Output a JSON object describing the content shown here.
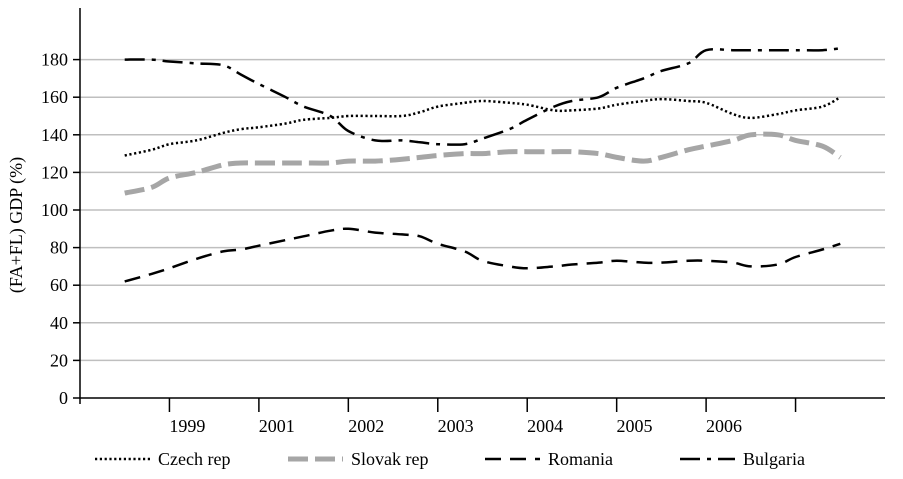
{
  "chart_data": {
    "type": "line",
    "title": "",
    "xlabel": "",
    "ylabel": "(FA+FL) GDP (%)",
    "ylim": [
      0,
      200
    ],
    "yticks": [
      0,
      20,
      40,
      60,
      80,
      100,
      120,
      140,
      160,
      180
    ],
    "categories": [
      "1999",
      "2001",
      "2002",
      "2003",
      "2004",
      "2005",
      "2006"
    ],
    "grid": "horizontal",
    "legend_position": "bottom",
    "series": [
      {
        "name": "Czech rep",
        "style": "dotted",
        "color": "#000000",
        "x": [
          0.5,
          0.8,
          1.0,
          1.3,
          1.6,
          1.8,
          2.0,
          2.3,
          2.5,
          2.8,
          3.0,
          3.3,
          3.6,
          3.8,
          4.0,
          4.3,
          4.5,
          4.8,
          5.0,
          5.3,
          5.5,
          5.8,
          6.0,
          6.3,
          6.5,
          6.8,
          7.0,
          7.3,
          7.5,
          7.8,
          8.0,
          8.3,
          8.5
        ],
        "values": [
          129,
          132,
          135,
          137,
          141,
          143,
          144,
          146,
          148,
          149,
          150,
          150,
          150,
          152,
          155,
          157,
          158,
          157,
          156,
          153,
          153,
          154,
          156,
          158,
          159,
          158,
          157,
          151,
          149,
          151,
          153,
          155,
          160
        ]
      },
      {
        "name": "Slovak rep",
        "style": "long-dash-gray",
        "color": "#a6a6a6",
        "x": [
          0.5,
          0.8,
          1.0,
          1.3,
          1.6,
          1.8,
          2.0,
          2.3,
          2.5,
          2.8,
          3.0,
          3.3,
          3.6,
          3.8,
          4.0,
          4.3,
          4.5,
          4.8,
          5.0,
          5.3,
          5.5,
          5.8,
          6.0,
          6.3,
          6.5,
          6.8,
          7.0,
          7.3,
          7.5,
          7.8,
          8.0,
          8.3,
          8.5
        ],
        "values": [
          109,
          112,
          117,
          120,
          124,
          125,
          125,
          125,
          125,
          125,
          126,
          126,
          127,
          128,
          129,
          130,
          130,
          131,
          131,
          131,
          131,
          130,
          128,
          126,
          128,
          132,
          134,
          137,
          140,
          140,
          137,
          134,
          128
        ]
      },
      {
        "name": "Romania",
        "style": "dashed",
        "color": "#000000",
        "x": [
          0.5,
          0.8,
          1.0,
          1.3,
          1.6,
          1.8,
          2.0,
          2.3,
          2.5,
          2.8,
          3.0,
          3.3,
          3.6,
          3.8,
          4.0,
          4.3,
          4.5,
          4.8,
          5.0,
          5.3,
          5.5,
          5.8,
          6.0,
          6.3,
          6.5,
          6.8,
          7.0,
          7.3,
          7.5,
          7.8,
          8.0,
          8.3,
          8.5
        ],
        "values": [
          62,
          66,
          69,
          74,
          78,
          79,
          81,
          84,
          86,
          89,
          90,
          88,
          87,
          86,
          82,
          78,
          73,
          70,
          69,
          70,
          71,
          72,
          73,
          72,
          72,
          73,
          73,
          72,
          70,
          71,
          75,
          79,
          82
        ]
      },
      {
        "name": "Bulgaria",
        "style": "dash-dot",
        "color": "#000000",
        "x": [
          0.5,
          0.8,
          1.0,
          1.3,
          1.6,
          1.8,
          2.0,
          2.3,
          2.5,
          2.8,
          3.0,
          3.3,
          3.6,
          3.8,
          4.0,
          4.3,
          4.5,
          4.8,
          5.0,
          5.3,
          5.5,
          5.8,
          6.0,
          6.3,
          6.5,
          6.8,
          7.0,
          7.3,
          7.5,
          7.8,
          8.0,
          8.3,
          8.5
        ],
        "values": [
          180,
          180,
          179,
          178,
          177,
          172,
          167,
          160,
          155,
          150,
          142,
          137,
          137,
          136,
          135,
          135,
          138,
          143,
          148,
          155,
          158,
          160,
          165,
          170,
          174,
          178,
          185,
          185,
          185,
          185,
          185,
          185,
          186
        ]
      }
    ]
  }
}
